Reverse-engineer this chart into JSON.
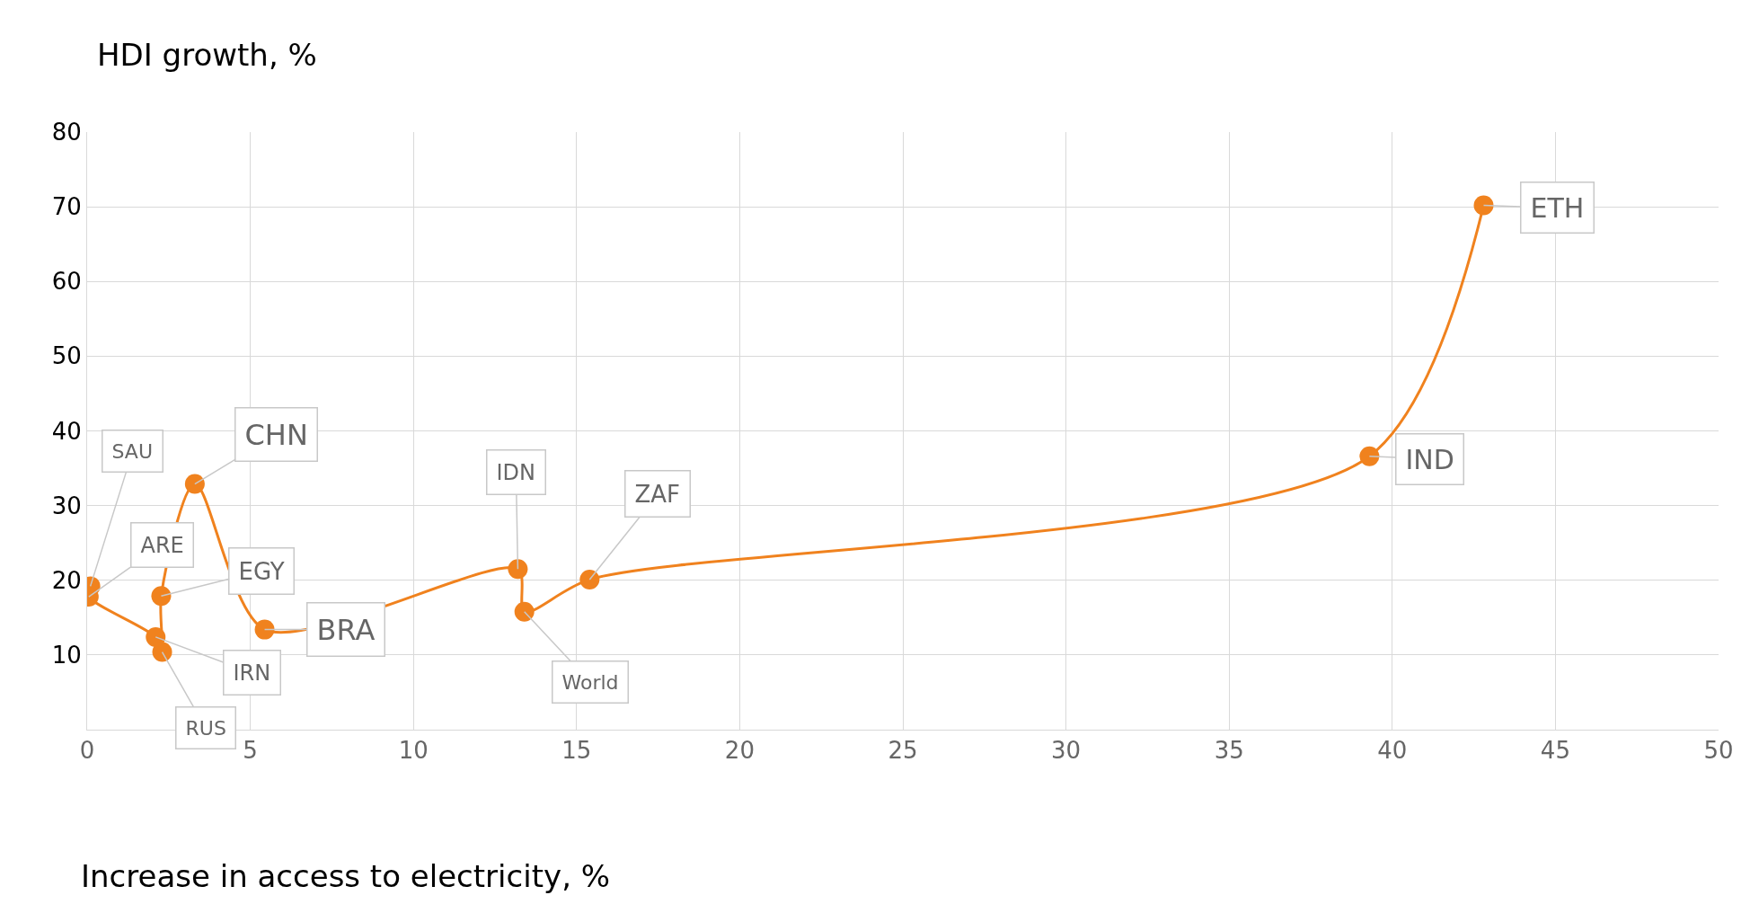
{
  "chart_data": {
    "type": "line",
    "xlabel": "Increase in access to electricity, %",
    "ylabel": "HDI growth, %",
    "x": [
      0.1,
      0.05,
      2.1,
      2.3,
      2.27,
      3.3,
      5.44,
      13.2,
      13.4,
      15.4,
      39.3,
      42.8
    ],
    "series": [
      {
        "color": "#f0821e",
        "values": [
          19.2,
          17.8,
          12.4,
          10.4,
          17.9,
          32.9,
          13.4,
          21.5,
          15.8,
          20.1,
          36.6,
          70.2
        ]
      }
    ],
    "marker": "circle",
    "grid": true,
    "xlim": [
      0,
      50
    ],
    "xticks": [
      0,
      5,
      10,
      15,
      20,
      25,
      30,
      35,
      40,
      45,
      50
    ],
    "ylim": [
      0,
      80
    ],
    "yticks": [
      10,
      20,
      30,
      40,
      50,
      60,
      70,
      80
    ],
    "annotations": [
      {
        "text": "SAU",
        "x": 0.1,
        "y": 19.2
      },
      {
        "text": "ARE",
        "x": 0.05,
        "y": 17.8
      },
      {
        "text": "IRN",
        "x": 2.1,
        "y": 12.4
      },
      {
        "text": "RUS",
        "x": 2.3,
        "y": 10.4
      },
      {
        "text": "EGY",
        "x": 2.27,
        "y": 17.9
      },
      {
        "text": "CHN",
        "x": 3.3,
        "y": 32.9
      },
      {
        "text": "BRA",
        "x": 5.44,
        "y": 13.4
      },
      {
        "text": "IDN",
        "x": 13.2,
        "y": 21.5
      },
      {
        "text": "World",
        "x": 13.4,
        "y": 15.8
      },
      {
        "text": "ZAF",
        "x": 15.4,
        "y": 20.1
      },
      {
        "text": "IND",
        "x": 39.3,
        "y": 36.6
      },
      {
        "text": "ETH",
        "x": 42.8,
        "y": 70.2
      }
    ]
  }
}
